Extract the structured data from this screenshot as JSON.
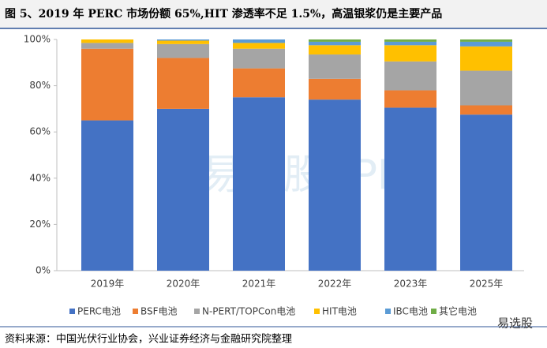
{
  "chart_data": {
    "type": "bar",
    "stacked": true,
    "title": "图 5、2019 年 PERC 市场份额 65%,HIT 渗透率不足 1.5%，高温银浆仍是主要产品",
    "source": "资料来源：中国光伏行业协会，兴业证券经济与金融研究院整理",
    "watermark": "易选股APP",
    "logo": "易选股",
    "categories": [
      "2019年",
      "2020年",
      "2021年",
      "2022年",
      "2023年",
      "2025年"
    ],
    "series": [
      {
        "name": "PERC电池",
        "color": "#4472c4",
        "values": [
          65,
          70,
          75,
          74,
          70.5,
          67.5
        ]
      },
      {
        "name": "BSF电池",
        "color": "#ed7d31",
        "values": [
          31,
          22,
          12.5,
          9,
          7.5,
          4
        ]
      },
      {
        "name": "N-PERT/TOPCon电池",
        "color": "#a5a5a5",
        "values": [
          2.5,
          6,
          8.5,
          10.5,
          12.5,
          15
        ]
      },
      {
        "name": "HIT电池",
        "color": "#ffc000",
        "values": [
          1.5,
          1.5,
          2.5,
          4,
          7,
          10.5
        ]
      },
      {
        "name": "IBC电池",
        "color": "#5b9bd5",
        "values": [
          0,
          0.5,
          1.5,
          1.5,
          1.5,
          2
        ]
      },
      {
        "name": "其它电池",
        "color": "#70ad47",
        "values": [
          0,
          0,
          0,
          1,
          1,
          1
        ]
      }
    ],
    "ylim": [
      0,
      100
    ],
    "yticks": [
      {
        "value": 0,
        "label": "0%"
      },
      {
        "value": 20,
        "label": "20%"
      },
      {
        "value": 40,
        "label": "40%"
      },
      {
        "value": 60,
        "label": "60%"
      },
      {
        "value": 80,
        "label": "80%"
      },
      {
        "value": 100,
        "label": "100%"
      }
    ],
    "grid": false,
    "legend": "bottom"
  }
}
